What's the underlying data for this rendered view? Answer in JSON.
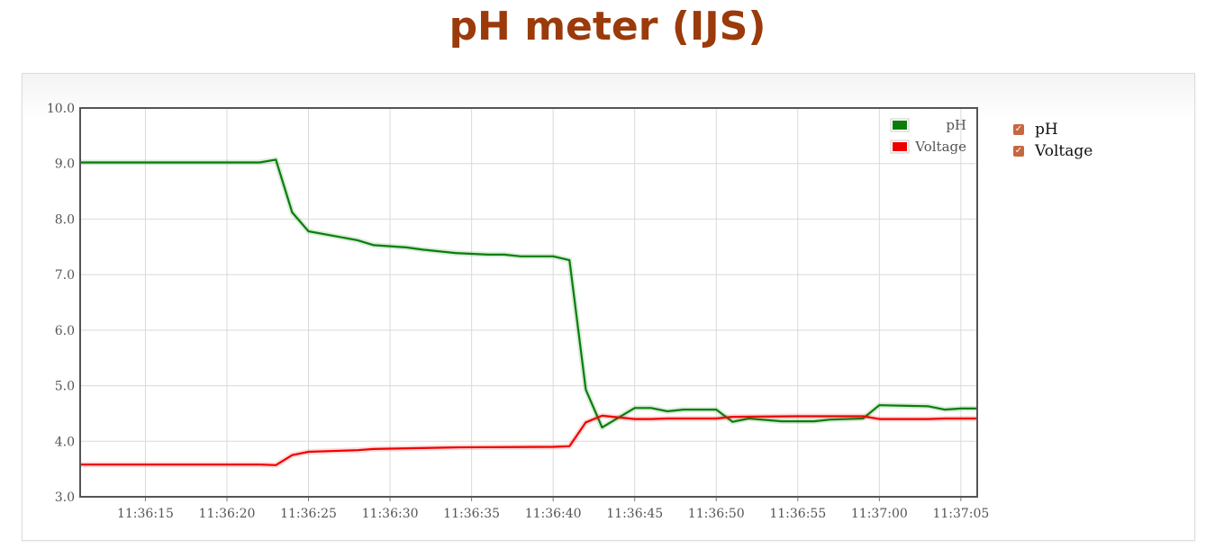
{
  "page": {
    "title": "pH meter (IJS)"
  },
  "side_legend": {
    "items": [
      {
        "label": "pH",
        "checked": true,
        "check_color": "#c8673f"
      },
      {
        "label": "Voltage",
        "checked": true,
        "check_color": "#c8673f"
      }
    ]
  },
  "chart_data": {
    "type": "line",
    "title": "",
    "xlabel": "",
    "ylabel": "",
    "ylim": [
      3.0,
      10.0
    ],
    "xlim": [
      "11:36:11",
      "11:37:06"
    ],
    "grid": true,
    "legend": "top-right",
    "y_ticks": [
      "3.0",
      "4.0",
      "5.0",
      "6.0",
      "7.0",
      "8.0",
      "9.0",
      "10.0"
    ],
    "x_ticks": [
      "11:36:15",
      "11:36:20",
      "11:36:25",
      "11:36:30",
      "11:36:35",
      "11:36:40",
      "11:36:45",
      "11:36:50",
      "11:36:55",
      "11:37:00",
      "11:37:05"
    ],
    "series": [
      {
        "name": "pH",
        "color": "#0a7d0a",
        "points": [
          [
            "11:36:11",
            9.02
          ],
          [
            "11:36:22",
            9.02
          ],
          [
            "11:36:23",
            9.07
          ],
          [
            "11:36:24",
            8.12
          ],
          [
            "11:36:25",
            7.78
          ],
          [
            "11:36:28",
            7.62
          ],
          [
            "11:36:29",
            7.53
          ],
          [
            "11:36:31",
            7.49
          ],
          [
            "11:36:32",
            7.45
          ],
          [
            "11:36:34",
            7.39
          ],
          [
            "11:36:36",
            7.36
          ],
          [
            "11:36:37",
            7.36
          ],
          [
            "11:36:38",
            7.33
          ],
          [
            "11:36:40",
            7.33
          ],
          [
            "11:36:41",
            7.26
          ],
          [
            "11:36:42",
            4.93
          ],
          [
            "11:36:43",
            4.25
          ],
          [
            "11:36:45",
            4.6
          ],
          [
            "11:36:46",
            4.6
          ],
          [
            "11:36:47",
            4.54
          ],
          [
            "11:36:48",
            4.57
          ],
          [
            "11:36:50",
            4.57
          ],
          [
            "11:36:51",
            4.35
          ],
          [
            "11:36:52",
            4.41
          ],
          [
            "11:36:54",
            4.36
          ],
          [
            "11:36:56",
            4.36
          ],
          [
            "11:36:57",
            4.39
          ],
          [
            "11:36:59",
            4.41
          ],
          [
            "11:37:00",
            4.65
          ],
          [
            "11:37:03",
            4.63
          ],
          [
            "11:37:04",
            4.57
          ],
          [
            "11:37:05",
            4.59
          ],
          [
            "11:37:06",
            4.59
          ]
        ]
      },
      {
        "name": "Voltage",
        "color": "#ee0000",
        "points": [
          [
            "11:36:11",
            3.58
          ],
          [
            "11:36:22",
            3.58
          ],
          [
            "11:36:23",
            3.57
          ],
          [
            "11:36:24",
            3.75
          ],
          [
            "11:36:25",
            3.81
          ],
          [
            "11:36:28",
            3.84
          ],
          [
            "11:36:29",
            3.86
          ],
          [
            "11:36:34",
            3.89
          ],
          [
            "11:36:40",
            3.9
          ],
          [
            "11:36:41",
            3.91
          ],
          [
            "11:36:42",
            4.34
          ],
          [
            "11:36:43",
            4.46
          ],
          [
            "11:36:45",
            4.4
          ],
          [
            "11:36:46",
            4.4
          ],
          [
            "11:36:47",
            4.41
          ],
          [
            "11:36:50",
            4.41
          ],
          [
            "11:36:51",
            4.44
          ],
          [
            "11:36:55",
            4.45
          ],
          [
            "11:36:59",
            4.45
          ],
          [
            "11:37:00",
            4.4
          ],
          [
            "11:37:03",
            4.4
          ],
          [
            "11:37:04",
            4.41
          ],
          [
            "11:37:06",
            4.41
          ]
        ]
      }
    ]
  }
}
